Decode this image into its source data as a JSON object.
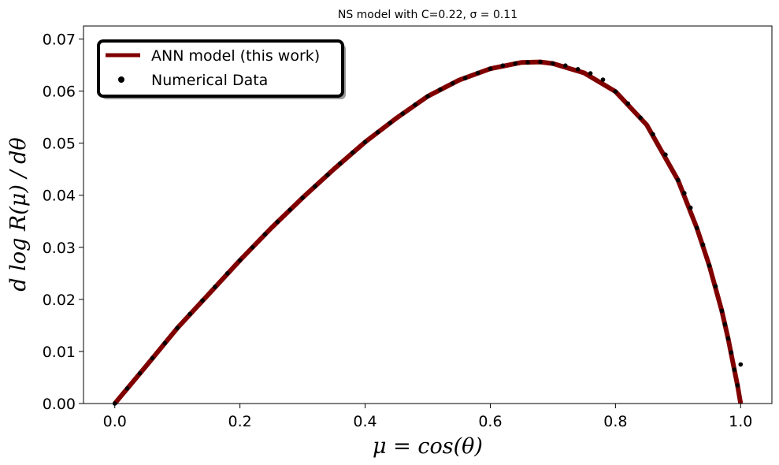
{
  "chart_data": {
    "type": "line",
    "title": "NS model with C=0.22, σ = 0.11",
    "xlabel": "μ = cos(θ)",
    "ylabel": "d log R(μ) / dθ",
    "xlim": [
      -0.05,
      1.05
    ],
    "ylim": [
      0.0,
      0.0725
    ],
    "xticks": [
      "0.0",
      "0.2",
      "0.4",
      "0.6",
      "0.8",
      "1.0"
    ],
    "yticks": [
      "0.00",
      "0.01",
      "0.02",
      "0.03",
      "0.04",
      "0.05",
      "0.06",
      "0.07"
    ],
    "grid": false,
    "legend_position": "top-left",
    "series": [
      {
        "name": "ANN model (this work)",
        "kind": "line",
        "color": "#800000",
        "x": [
          0.0,
          0.05,
          0.1,
          0.15,
          0.2,
          0.25,
          0.3,
          0.35,
          0.4,
          0.45,
          0.5,
          0.55,
          0.6,
          0.65,
          0.68,
          0.7,
          0.75,
          0.8,
          0.85,
          0.9,
          0.93,
          0.95,
          0.97,
          0.98,
          0.99,
          0.995,
          1.0
        ],
        "y": [
          0.0,
          0.0072,
          0.0145,
          0.021,
          0.0275,
          0.0337,
          0.0395,
          0.045,
          0.0502,
          0.0548,
          0.059,
          0.0621,
          0.0643,
          0.0655,
          0.0656,
          0.0653,
          0.0635,
          0.0599,
          0.0535,
          0.0429,
          0.0337,
          0.0265,
          0.0178,
          0.0125,
          0.0065,
          0.0035,
          0.0
        ]
      },
      {
        "name": "Numerical Data",
        "kind": "scatter",
        "color": "#000000",
        "x": [
          0.0,
          0.02,
          0.04,
          0.06,
          0.08,
          0.1,
          0.12,
          0.14,
          0.16,
          0.18,
          0.2,
          0.22,
          0.24,
          0.26,
          0.28,
          0.3,
          0.32,
          0.34,
          0.36,
          0.38,
          0.4,
          0.42,
          0.44,
          0.46,
          0.48,
          0.5,
          0.52,
          0.54,
          0.56,
          0.58,
          0.6,
          0.62,
          0.64,
          0.66,
          0.68,
          0.7,
          0.72,
          0.74,
          0.76,
          0.78,
          0.8,
          0.82,
          0.84,
          0.86,
          0.88,
          0.9,
          0.91,
          0.92,
          0.93,
          0.94,
          0.95,
          0.96,
          0.97,
          0.975,
          0.98,
          0.985,
          0.99,
          0.995,
          1.0
        ],
        "y": [
          0.0,
          0.0029,
          0.0058,
          0.0087,
          0.0116,
          0.0145,
          0.0172,
          0.0198,
          0.0224,
          0.025,
          0.0275,
          0.03,
          0.0325,
          0.0349,
          0.0372,
          0.0395,
          0.0417,
          0.0439,
          0.0461,
          0.0482,
          0.0502,
          0.0521,
          0.0539,
          0.0557,
          0.0574,
          0.059,
          0.0603,
          0.0615,
          0.0625,
          0.0635,
          0.0643,
          0.0649,
          0.0653,
          0.0655,
          0.0656,
          0.0653,
          0.0649,
          0.0642,
          0.0634,
          0.0622,
          0.0599,
          0.0576,
          0.0549,
          0.0517,
          0.0478,
          0.0429,
          0.0404,
          0.0376,
          0.0337,
          0.0305,
          0.0265,
          0.0225,
          0.0178,
          0.0152,
          0.0125,
          0.0098,
          0.0065,
          0.0035,
          0.0075
        ]
      }
    ]
  },
  "legend": {
    "line_label": "ANN model (this work)",
    "scatter_label": "Numerical Data"
  }
}
